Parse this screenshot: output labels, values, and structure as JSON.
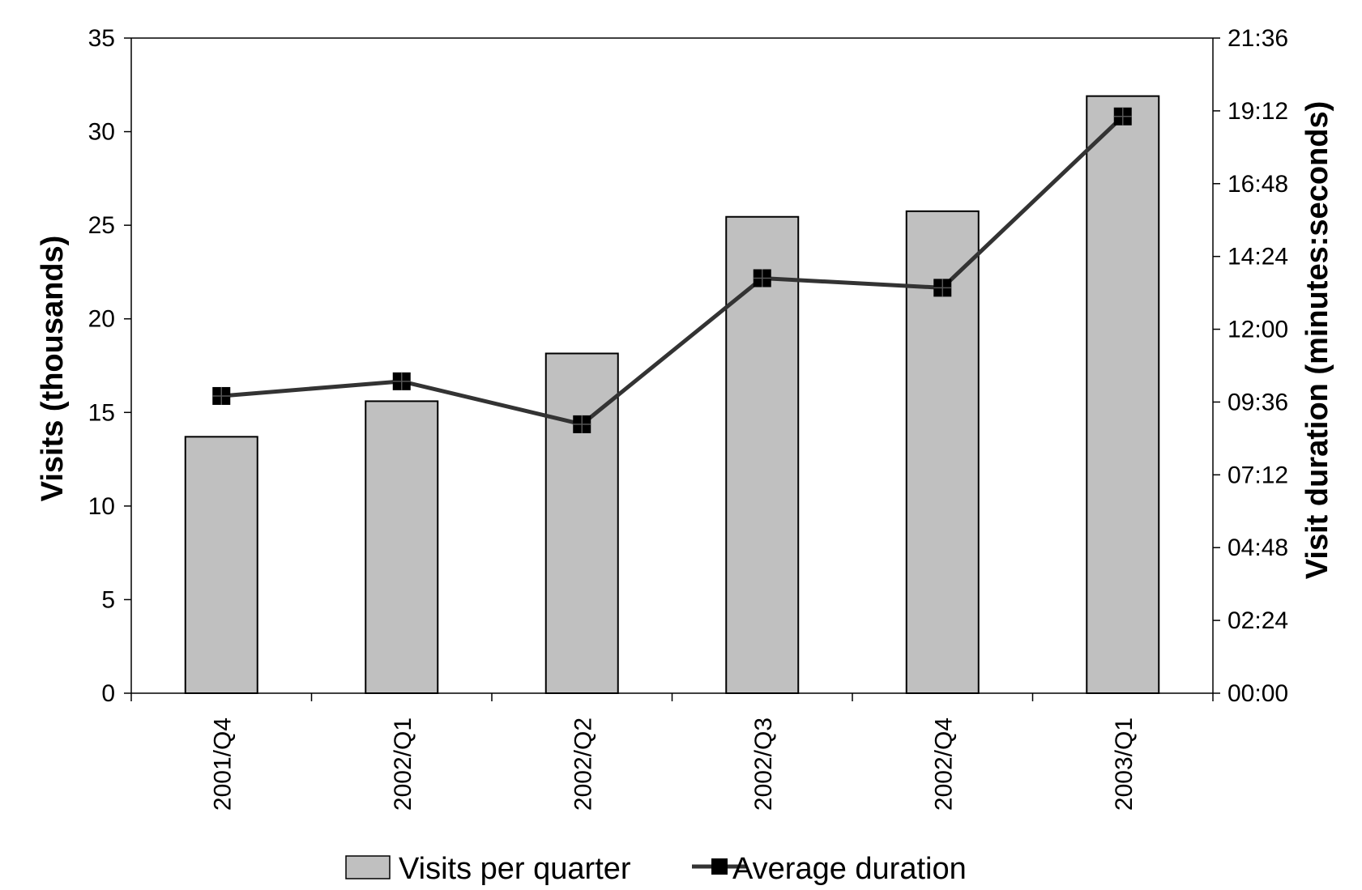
{
  "chart_data": {
    "type": "bar",
    "categories": [
      "2001/Q4",
      "2002/Q1",
      "2002/Q2",
      "2002/Q3",
      "2002/Q4",
      "2003/Q1"
    ],
    "series": [
      {
        "name": "Visits per quarter",
        "type": "bar",
        "axis": "left",
        "values": [
          13.7,
          15.6,
          18.15,
          25.45,
          25.75,
          31.9
        ]
      },
      {
        "name": "Average duration",
        "type": "line",
        "axis": "right",
        "values": [
          "09:48",
          "10:17",
          "08:52",
          "13:41",
          "13:22",
          "19:01"
        ]
      }
    ],
    "ylabel": "Visits (thousands)",
    "ylim": [
      0,
      35
    ],
    "yticks": [
      "0",
      "5",
      "10",
      "15",
      "20",
      "25",
      "30",
      "35"
    ],
    "y2label": "Visit duration (minutes:seconds)",
    "y2lim": [
      "00:00",
      "21:36"
    ],
    "y2ticks": [
      "00:00",
      "02:24",
      "04:48",
      "07:12",
      "09:36",
      "12:00",
      "14:24",
      "16:48",
      "19:12",
      "21:36"
    ],
    "grid": false,
    "legend": "bottom",
    "colors": {
      "bar_fill": "#c0c0c0",
      "bar_stroke": "#000000",
      "line": "#333333",
      "marker": "#000000"
    }
  }
}
